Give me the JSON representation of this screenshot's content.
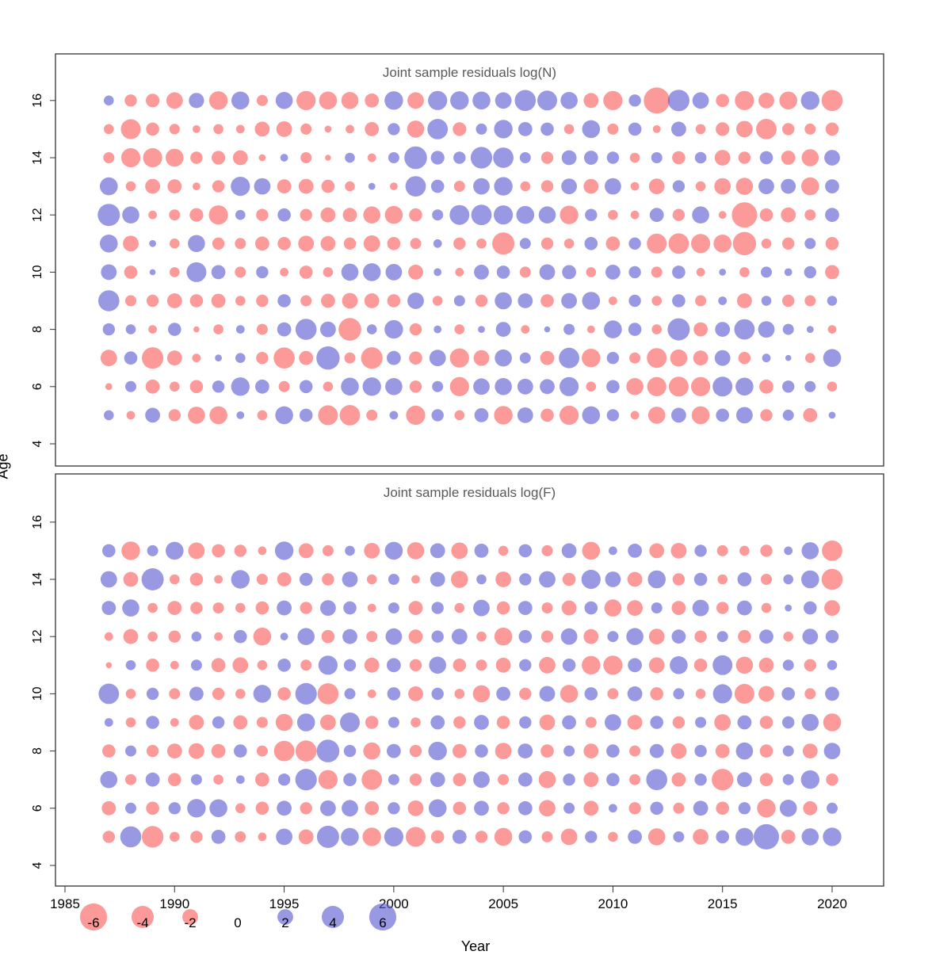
{
  "figure": {
    "xlabel": "Year",
    "ylabel": "Age"
  },
  "axes": {
    "x_ticks": [
      "1985",
      "1990",
      "1995",
      "2000",
      "2005",
      "2010",
      "2015",
      "2020"
    ],
    "y_ticks": [
      "4",
      "6",
      "8",
      "10",
      "12",
      "14",
      "16"
    ]
  },
  "legend": {
    "values": [
      "-6",
      "-4",
      "-2",
      "0",
      "2",
      "4",
      "6"
    ]
  },
  "colors": {
    "negative": "#FA5A5A",
    "positive": "#5A5AD2"
  },
  "chart_data": [
    {
      "type": "scatter",
      "title": "Joint sample residuals log(N)",
      "xlabel": "Year",
      "ylabel": "Age",
      "xlim": [
        1983.5,
        2022.5
      ],
      "ylim": [
        3.5,
        17.2
      ],
      "grid": false,
      "legend_position": "bottom",
      "encoding": "bubble area = |residual|, red = negative residual, blue = positive residual",
      "x": [
        1987,
        1988,
        1989,
        1990,
        1991,
        1992,
        1993,
        1994,
        1995,
        1996,
        1997,
        1998,
        1999,
        2000,
        2001,
        2002,
        2003,
        2004,
        2005,
        2006,
        2007,
        2008,
        2009,
        2010,
        2011,
        2012,
        2013,
        2014,
        2015,
        2016,
        2017,
        2018,
        2019,
        2020
      ],
      "series": [
        {
          "name": "age 16",
          "age": 16,
          "values": [
            0.8,
            -1.2,
            -1.5,
            -2.2,
            1.9,
            -2.8,
            2.6,
            -1.0,
            2.4,
            -3.0,
            -2.6,
            -2.4,
            -1.6,
            2.8,
            -2.2,
            3.0,
            2.8,
            2.6,
            2.2,
            3.6,
            3.2,
            2.4,
            -1.8,
            -3.0,
            1.2,
            -5.5,
            3.8,
            2.2,
            -1.4,
            -3.0,
            -2.0,
            -2.6,
            2.8,
            -3.6
          ]
        },
        {
          "name": "age 15",
          "age": 15,
          "values": [
            -0.8,
            -3.2,
            -1.4,
            -0.9,
            -0.5,
            -0.8,
            -0.6,
            -1.8,
            -2.0,
            -1.0,
            -0.4,
            -0.6,
            -1.6,
            1.2,
            -2.4,
            3.4,
            -1.5,
            1.0,
            2.8,
            1.6,
            1.4,
            -0.8,
            2.6,
            -1.0,
            1.4,
            -0.5,
            1.8,
            -0.8,
            -1.5,
            -2.2,
            -3.4,
            -1.2,
            -1.0,
            -1.4
          ]
        },
        {
          "name": "age 14",
          "age": 14,
          "values": [
            -1.0,
            -3.0,
            -3.0,
            -2.6,
            -1.2,
            -1.5,
            -1.8,
            -0.4,
            0.5,
            -1.0,
            -0.3,
            0.8,
            -0.6,
            1.0,
            4.2,
            1.5,
            1.2,
            3.8,
            3.4,
            1.0,
            -1.2,
            1.8,
            1.6,
            1.2,
            -0.8,
            1.0,
            -1.4,
            1.1,
            -2.0,
            -1.2,
            1.4,
            -1.6,
            -2.4,
            2.0
          ]
        },
        {
          "name": "age 13",
          "age": 13,
          "values": [
            2.6,
            -0.8,
            -1.8,
            -1.6,
            -0.5,
            -1.2,
            3.0,
            2.2,
            -1.6,
            -1.8,
            -1.4,
            -0.8,
            0.4,
            -0.5,
            3.4,
            1.4,
            -1.0,
            2.2,
            2.8,
            -0.8,
            -1.2,
            2.0,
            -1.8,
            2.2,
            -0.6,
            -2.0,
            1.2,
            -0.8,
            -2.2,
            -2.4,
            2.0,
            1.8,
            -2.6,
            1.6
          ]
        },
        {
          "name": "age 12",
          "age": 12,
          "values": [
            4.0,
            2.4,
            -0.6,
            -1.0,
            -1.5,
            -3.0,
            0.8,
            -1.2,
            1.4,
            -1.2,
            -1.8,
            -1.6,
            -2.4,
            -2.6,
            -1.4,
            1.0,
            3.2,
            3.4,
            3.0,
            2.6,
            2.4,
            -2.8,
            1.2,
            -0.8,
            -0.6,
            1.6,
            -1.2,
            2.4,
            -0.5,
            -5.2,
            -1.4,
            -1.8,
            -1.0,
            1.6
          ]
        },
        {
          "name": "age 11",
          "age": 11,
          "values": [
            2.6,
            -2.0,
            0.4,
            -0.8,
            2.4,
            -1.2,
            -1.0,
            -1.6,
            -1.4,
            -2.0,
            -1.8,
            -1.2,
            -2.2,
            -1.4,
            -1.0,
            0.6,
            -1.2,
            -0.8,
            -4.0,
            1.0,
            -1.2,
            -0.8,
            1.4,
            -1.6,
            1.2,
            -3.2,
            -3.4,
            -3.0,
            -2.6,
            -4.4,
            -0.8,
            -1.2,
            1.0,
            -1.4
          ]
        },
        {
          "name": "age 10",
          "age": 10,
          "values": [
            2.0,
            -1.4,
            0.3,
            -0.8,
            3.2,
            1.6,
            -1.0,
            1.2,
            -0.6,
            -1.4,
            -0.8,
            2.4,
            2.6,
            2.2,
            -1.8,
            0.5,
            -0.6,
            1.8,
            1.4,
            -1.0,
            2.0,
            1.6,
            -0.8,
            1.8,
            1.2,
            -1.0,
            1.4,
            -0.6,
            0.4,
            -0.8,
            1.0,
            0.5,
            1.2,
            -1.6
          ]
        },
        {
          "name": "age 9",
          "age": 9,
          "values": [
            3.6,
            -1.0,
            -1.2,
            -1.8,
            -1.4,
            -1.6,
            -0.8,
            -1.2,
            1.4,
            -1.0,
            -1.6,
            -2.0,
            -1.8,
            -1.4,
            2.2,
            -0.8,
            1.0,
            -1.2,
            2.4,
            1.8,
            -1.4,
            2.0,
            2.6,
            -0.6,
            1.2,
            -0.8,
            1.4,
            -1.0,
            0.6,
            -1.8,
            0.8,
            -1.2,
            -1.0,
            0.8
          ]
        },
        {
          "name": "age 8",
          "age": 8,
          "values": [
            1.2,
            0.8,
            -0.6,
            1.4,
            -0.3,
            -0.8,
            0.6,
            -1.0,
            1.6,
            3.6,
            2.0,
            -4.2,
            0.8,
            2.8,
            -1.2,
            0.5,
            -0.8,
            0.4,
            1.8,
            -0.6,
            0.3,
            1.0,
            -0.5,
            2.6,
            1.4,
            -0.8,
            4.0,
            -1.6,
            1.8,
            3.4,
            2.2,
            1.0,
            0.4,
            -0.6
          ]
        },
        {
          "name": "age 7",
          "age": 7,
          "values": [
            -2.2,
            1.4,
            -3.8,
            -1.8,
            -0.6,
            0.4,
            0.8,
            -1.2,
            -3.6,
            -1.6,
            4.4,
            -1.0,
            -3.8,
            1.6,
            -1.4,
            2.2,
            -3.0,
            -2.0,
            2.4,
            1.0,
            -1.6,
            3.4,
            -2.8,
            1.2,
            -1.0,
            -3.2,
            -2.4,
            -1.8,
            2.0,
            -1.2,
            0.6,
            0.3,
            -0.8,
            2.6
          ]
        },
        {
          "name": "age 6",
          "age": 6,
          "values": [
            -0.4,
            1.0,
            -1.6,
            -0.8,
            -1.4,
            1.2,
            2.8,
            1.6,
            -1.0,
            1.4,
            -0.8,
            2.6,
            2.8,
            2.4,
            -1.2,
            1.0,
            -3.0,
            2.2,
            2.4,
            2.0,
            1.8,
            3.0,
            -0.8,
            1.4,
            -2.4,
            -3.0,
            -3.2,
            -3.0,
            3.2,
            2.6,
            -1.6,
            1.2,
            1.0,
            -0.8
          ]
        },
        {
          "name": "age 5",
          "age": 5,
          "values": [
            0.8,
            -0.6,
            1.8,
            -1.2,
            -2.4,
            -2.6,
            0.5,
            -0.8,
            2.6,
            1.4,
            -3.2,
            -3.4,
            -1.0,
            0.6,
            -3.0,
            1.2,
            -0.8,
            1.6,
            -2.8,
            2.0,
            -1.4,
            -3.0,
            2.6,
            1.2,
            -0.6,
            -2.4,
            1.8,
            -2.6,
            1.4,
            2.2,
            -1.2,
            1.0,
            -1.6,
            0.4
          ]
        }
      ]
    },
    {
      "type": "scatter",
      "title": "Joint sample residuals log(F)",
      "xlabel": "Year",
      "ylabel": "Age",
      "xlim": [
        1983.5,
        2022.5
      ],
      "ylim": [
        3.5,
        17.2
      ],
      "grid": false,
      "legend_position": "bottom",
      "encoding": "bubble area = |residual|, red = negative residual, blue = positive residual",
      "x": [
        1987,
        1988,
        1989,
        1990,
        1991,
        1992,
        1993,
        1994,
        1995,
        1996,
        1997,
        1998,
        1999,
        2000,
        2001,
        2002,
        2003,
        2004,
        2005,
        2006,
        2007,
        2008,
        2009,
        2010,
        2011,
        2012,
        2013,
        2014,
        2015,
        2016,
        2017,
        2018,
        2019,
        2020
      ],
      "series": [
        {
          "name": "age 15",
          "age": 15,
          "values": [
            1.4,
            -2.8,
            1.0,
            2.6,
            -2.2,
            -1.4,
            -1.2,
            -0.6,
            2.8,
            -1.8,
            -1.0,
            0.8,
            -2.0,
            2.6,
            -2.4,
            1.8,
            -2.2,
            1.6,
            -0.8,
            1.4,
            -1.0,
            1.8,
            -2.6,
            0.6,
            1.6,
            -1.8,
            -2.0,
            1.2,
            -1.0,
            -0.8,
            -1.2,
            0.6,
            2.4,
            -3.4
          ]
        },
        {
          "name": "age 14",
          "age": 14,
          "values": [
            2.2,
            -1.8,
            4.0,
            -0.8,
            -1.4,
            -0.6,
            2.8,
            -1.0,
            -1.6,
            1.4,
            -1.2,
            2.0,
            -0.8,
            1.0,
            -0.6,
            1.8,
            -2.4,
            0.8,
            -2.0,
            1.2,
            2.2,
            -1.4,
            3.0,
            2.0,
            -1.8,
            2.6,
            -1.2,
            1.4,
            -0.8,
            1.6,
            -1.0,
            0.8,
            2.6,
            -3.6
          ]
        },
        {
          "name": "age 13",
          "age": 13,
          "values": [
            1.6,
            2.4,
            -0.8,
            -1.6,
            -1.2,
            -1.0,
            -0.8,
            -1.4,
            1.8,
            -1.2,
            2.0,
            1.4,
            -0.6,
            1.0,
            -1.6,
            1.2,
            -0.8,
            2.2,
            -1.4,
            1.6,
            -1.0,
            -1.8,
            1.4,
            -2.4,
            -2.0,
            1.0,
            -1.6,
            2.2,
            -1.2,
            1.8,
            -0.8,
            0.4,
            1.4,
            -2.0
          ]
        },
        {
          "name": "age 12",
          "age": 12,
          "values": [
            -0.6,
            -1.8,
            -0.8,
            -1.2,
            0.8,
            -0.6,
            1.4,
            -2.6,
            0.5,
            2.4,
            -1.4,
            1.8,
            -1.0,
            2.2,
            -1.6,
            1.2,
            2.0,
            -0.8,
            -2.6,
            1.4,
            -1.2,
            2.2,
            -1.8,
            1.0,
            2.4,
            -2.0,
            1.6,
            -1.2,
            1.0,
            -1.4,
            1.6,
            -0.8,
            2.0,
            1.4
          ]
        },
        {
          "name": "age 11",
          "age": 11,
          "values": [
            -0.3,
            0.8,
            -1.4,
            -0.6,
            1.0,
            -1.6,
            -2.0,
            -0.8,
            1.4,
            -1.0,
            3.0,
            1.2,
            -1.8,
            1.6,
            -1.2,
            2.4,
            -1.4,
            -1.0,
            -1.8,
            1.2,
            -2.2,
            1.4,
            -2.8,
            -3.0,
            1.6,
            -2.0,
            2.6,
            -1.4,
            3.2,
            -2.4,
            -1.8,
            1.0,
            -1.2,
            0.8
          ]
        },
        {
          "name": "age 10",
          "age": 10,
          "values": [
            3.4,
            -0.8,
            1.2,
            -1.0,
            1.6,
            -1.2,
            -0.8,
            2.6,
            -1.4,
            3.8,
            -3.6,
            1.0,
            -0.6,
            1.4,
            -1.8,
            1.2,
            -0.8,
            -2.4,
            1.6,
            -1.2,
            2.0,
            -2.6,
            1.4,
            -1.0,
            1.8,
            -1.4,
            1.0,
            -0.8,
            3.0,
            -3.2,
            -2.0,
            1.4,
            -1.0,
            1.6
          ]
        },
        {
          "name": "age 9",
          "age": 9,
          "values": [
            0.6,
            -0.8,
            1.4,
            -0.6,
            -1.8,
            1.2,
            -1.6,
            -1.0,
            -2.4,
            2.6,
            -2.0,
            3.2,
            -1.4,
            1.0,
            -0.8,
            1.6,
            -1.2,
            1.8,
            -1.4,
            1.2,
            -2.0,
            1.6,
            -1.0,
            2.2,
            -1.8,
            1.4,
            -1.2,
            1.0,
            -2.2,
            1.6,
            -1.4,
            1.2,
            2.4,
            -2.6
          ]
        },
        {
          "name": "age 8",
          "age": 8,
          "values": [
            -1.4,
            1.0,
            -1.2,
            -1.8,
            -2.0,
            -1.6,
            1.4,
            -1.0,
            -3.4,
            -3.6,
            4.2,
            1.2,
            -2.4,
            1.6,
            -1.2,
            2.8,
            -1.6,
            1.4,
            -2.2,
            1.8,
            -1.4,
            1.0,
            -1.8,
            1.4,
            -1.0,
            1.6,
            -2.0,
            1.2,
            -1.6,
            2.4,
            -1.4,
            1.0,
            -1.8,
            2.2
          ]
        },
        {
          "name": "age 7",
          "age": 7,
          "values": [
            2.4,
            -1.0,
            1.6,
            -1.4,
            1.0,
            -0.8,
            0.6,
            -1.6,
            1.2,
            3.8,
            -3.0,
            1.4,
            -3.4,
            1.0,
            -1.2,
            1.8,
            -1.4,
            2.2,
            -1.0,
            1.6,
            -2.4,
            1.2,
            -1.8,
            1.4,
            -1.0,
            3.6,
            -1.6,
            1.2,
            -3.8,
            1.8,
            -1.4,
            1.0,
            2.8,
            -1.2
          ]
        },
        {
          "name": "age 6",
          "age": 6,
          "values": [
            -1.6,
            1.0,
            -1.4,
            1.2,
            2.8,
            2.6,
            -0.8,
            -1.4,
            1.8,
            -1.2,
            2.0,
            2.2,
            -1.6,
            1.2,
            -2.0,
            2.6,
            -1.4,
            1.8,
            -1.2,
            1.6,
            -2.2,
            1.0,
            -1.8,
            0.6,
            -1.2,
            1.4,
            -1.0,
            1.8,
            -1.4,
            1.2,
            -2.8,
            2.4,
            -1.6,
            1.0
          ]
        },
        {
          "name": "age 5",
          "age": 5,
          "values": [
            -1.2,
            3.6,
            -3.8,
            -0.8,
            -1.2,
            1.6,
            -1.0,
            -0.6,
            2.2,
            -1.8,
            4.0,
            2.6,
            -2.8,
            3.0,
            -3.2,
            -1.4,
            1.6,
            -1.2,
            -2.6,
            1.4,
            -1.0,
            -2.2,
            1.2,
            -0.8,
            1.6,
            -2.4,
            1.0,
            -2.0,
            1.4,
            2.6,
            5.2,
            -1.6,
            2.4,
            2.8
          ]
        }
      ]
    }
  ]
}
